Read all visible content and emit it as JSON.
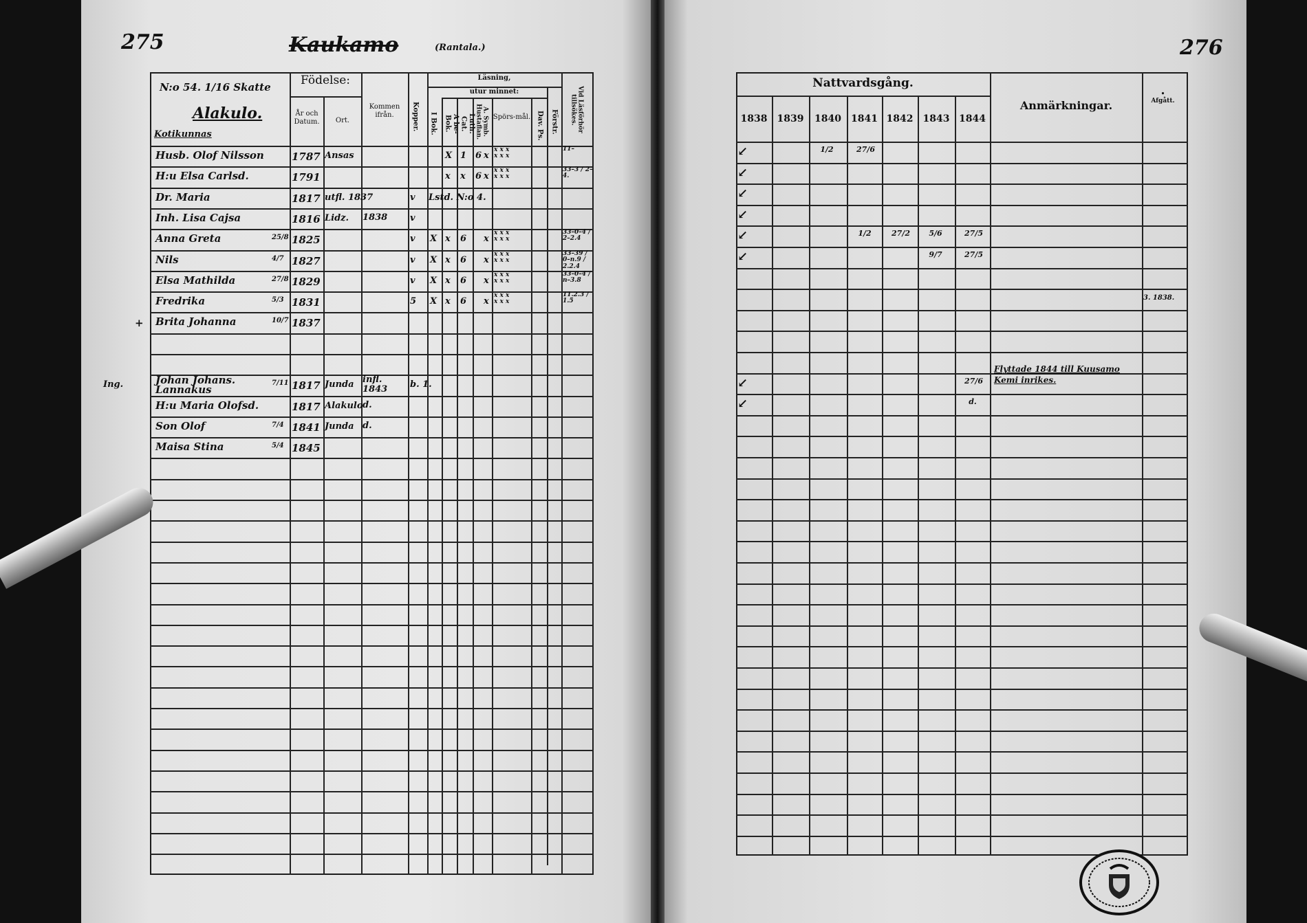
{
  "left_page": {
    "page_number": "275",
    "village_crossed": "Kaukamo",
    "village_note": "(Rantala.)",
    "household_header": {
      "number": "N:o 54. 1/16 Skatte",
      "farm": "Alakulo.",
      "subtitle": "Kotikunnas"
    },
    "headers": {
      "fodelse": "Födelse:",
      "ar_datum": "År och Datum.",
      "ort": "Ort.",
      "kommen": "Kommen ifrån.",
      "kopper": "Kopper.",
      "lasning": "Läsning,",
      "utur_minnet": "utur minnet:",
      "i_bok": "I Bok.",
      "abe_bok": "A be-Bok.",
      "luth_cat": "Luth. Cat.",
      "symb": "A. Symb. Hustaflan.",
      "sporsmal": "Spörs-mål.",
      "dav_ps": "Dav. Ps.",
      "forstr": "Förstr.",
      "vid_lasf": "Vid Läsförhör tillsökes."
    },
    "rows": [
      {
        "name": "Husb. Olof Nilsson",
        "year": "1787",
        "ort": "Ansas",
        "abe": "X",
        "luth": "1",
        "symb": "6",
        "symb2": "x",
        "spors": "x x x / x x x",
        "vid": "11–"
      },
      {
        "name": "H:u Elsa Carlsd.",
        "year": "1791",
        "abe": "x",
        "luth": "x",
        "symb": "6",
        "symb2": "x",
        "spors": "x x x / x x x",
        "vid": "33–3 / 2–4."
      },
      {
        "name": "Dr. Maria",
        "year": "1817",
        "ort": "utfl. 1837",
        "kopper": "v",
        "note": "Lstd. N:o 4."
      },
      {
        "name": "Inh. Lisa Cajsa",
        "year": "1816",
        "ort": "Lidz.",
        "kommen": "1838",
        "kopper": "v"
      },
      {
        "name": "Anna Greta",
        "day": "25/8",
        "year": "1825",
        "kopper": "v",
        "ibok": "X",
        "abe": "x",
        "luth": "6",
        "symb2": "x",
        "spors": "x x x / x x x",
        "vid": "33–0–4 / 2–2.4"
      },
      {
        "name": "Nils",
        "day": "4/7",
        "year": "1827",
        "kopper": "v",
        "ibok": "X",
        "abe": "x",
        "luth": "6",
        "symb2": "x",
        "spors": "x x x / x x x",
        "vid": "33–39 / 0–n.9 / 2.2.4"
      },
      {
        "name": "Elsa Mathilda",
        "day": "27/8",
        "year": "1829",
        "kopper": "v",
        "ibok": "X",
        "abe": "x",
        "luth": "6",
        "symb2": "x",
        "spors": "x x x / x x x",
        "vid": "33–0–4 / n–3.8"
      },
      {
        "name": "Fredrika",
        "day": "5/3",
        "year": "1831",
        "kopper": "5",
        "ibok": "X",
        "abe": "x",
        "luth": "6",
        "symb2": "x",
        "spors": "x x x / x x x",
        "vid": "11.2.3 / 1.5"
      },
      {
        "name": "Brita Johanna",
        "day": "10/7",
        "year": "1837",
        "mark": "+"
      },
      {},
      {},
      {
        "margin": "Ing.",
        "name": "Johan Johans. Lannakus",
        "day": "7/11",
        "year": "1817",
        "ort": "Junda",
        "kommen": "infl. 1843",
        "kopper": "b. 1."
      },
      {
        "name": "H:u Maria Olofsd.",
        "year": "1817",
        "ort": "Alakulo",
        "kommen": "d."
      },
      {
        "name": "Son Olof",
        "day": "7/4",
        "year": "1841",
        "ort": "Junda",
        "kommen": "d."
      },
      {
        "name": "Maisa Stina",
        "day": "5/4",
        "year": "1845"
      }
    ]
  },
  "right_page": {
    "page_number": "276",
    "headers": {
      "nattvard": "Nattvardsgång.",
      "years": [
        "1838",
        "1839",
        "1840",
        "1841",
        "1842",
        "1843",
        "1844"
      ],
      "anmarkningar": "Anmärkningar.",
      "afgatt": "Afgått."
    },
    "rows": [
      {
        "check": true,
        "marks": {
          "1840": "1/2",
          "1841": "27/6"
        }
      },
      {
        "check": true
      },
      {
        "check": true
      },
      {
        "check": true
      },
      {
        "check": true,
        "marks": {
          "1841": "1/2",
          "1842": "27/2",
          "1843": "5/6",
          "1844": "27/5"
        }
      },
      {
        "check": true,
        "marks": {
          "1843": "9/7",
          "1844": "27/5"
        }
      },
      {},
      {
        "afgatt": "3. 1838."
      },
      {},
      {},
      {},
      {
        "check": true,
        "marks": {
          "1844": "27/6"
        },
        "remark": "Flyttade 1844 till Kuusamo / Kemi inrikes."
      },
      {
        "check": true,
        "marks": {
          "1844": "d."
        }
      }
    ]
  }
}
